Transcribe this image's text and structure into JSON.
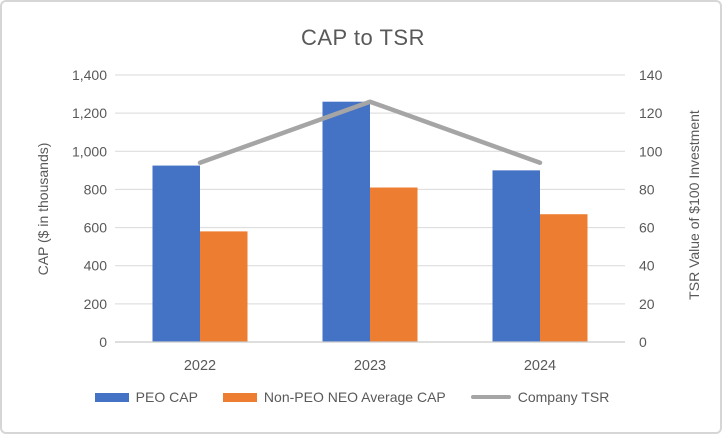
{
  "window": {
    "background": "#ffffff",
    "border_color": "#d6d6d6"
  },
  "chart_data": {
    "type": "combo-bar-line",
    "title": "CAP to TSR",
    "categories": [
      "2022",
      "2023",
      "2024"
    ],
    "series": [
      {
        "name": "PEO CAP",
        "type": "bar",
        "axis": "left",
        "color": "#4472C4",
        "values": [
          925,
          1260,
          900
        ]
      },
      {
        "name": "Non-PEO NEO Average CAP",
        "type": "bar",
        "axis": "left",
        "color": "#ED7D31",
        "values": [
          580,
          810,
          670
        ]
      },
      {
        "name": "Company TSR",
        "type": "line",
        "axis": "right",
        "color": "#A5A5A5",
        "values": [
          94,
          126,
          94
        ]
      }
    ],
    "left_axis": {
      "title": "CAP ($ in thousands)",
      "min": 0,
      "max": 1400,
      "step": 200,
      "tick_labels_top_to_bottom": [
        "1,400",
        "1,200",
        "1,000",
        "800",
        "600",
        "400",
        "200",
        "0"
      ]
    },
    "right_axis": {
      "title": "TSR Value of $100 Investment",
      "min": 0,
      "max": 140,
      "step": 20,
      "tick_labels_top_to_bottom": [
        "140",
        "120",
        "100",
        "80",
        "60",
        "40",
        "20",
        "0"
      ]
    },
    "legend_position": "bottom",
    "grid": true,
    "gridline_color": "#d9d9d9",
    "axis_line_color": "#c9c9c9",
    "text_color": "#595959"
  }
}
